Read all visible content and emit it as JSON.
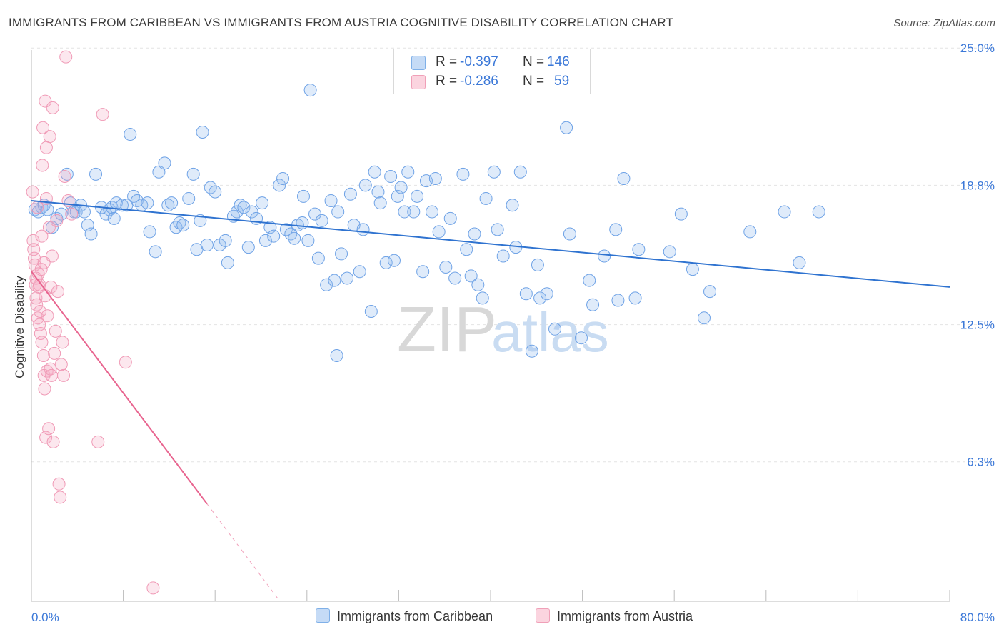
{
  "header": {
    "title": "IMMIGRANTS FROM CARIBBEAN VS IMMIGRANTS FROM AUSTRIA COGNITIVE DISABILITY CORRELATION CHART",
    "source": "Source: ZipAtlas.com"
  },
  "watermark": {
    "zip": "ZIP",
    "atlas": "atlas"
  },
  "legend": {
    "rows": [
      {
        "r_label": "R =",
        "r_value": "-0.397",
        "n_label": "N =",
        "n_value": "146",
        "color": "#a8c8f0"
      },
      {
        "r_label": "R =",
        "r_value": "-0.286",
        "n_label": "N =",
        "n_value": "59",
        "color": "#f5b8cb"
      }
    ]
  },
  "bottom_legend": {
    "caribbean": "Immigrants from Caribbean",
    "austria": "Immigrants from Austria"
  },
  "axes": {
    "ylabel": "Cognitive Disability",
    "x_min_label": "0.0%",
    "x_max_label": "80.0%",
    "y_ticks": [
      "25.0%",
      "18.8%",
      "12.5%",
      "6.3%"
    ]
  },
  "chart_data": {
    "type": "scatter",
    "title": "IMMIGRANTS FROM CARIBBEAN VS IMMIGRANTS FROM AUSTRIA COGNITIVE DISABILITY CORRELATION CHART",
    "xlabel": "",
    "ylabel": "Cognitive Disability",
    "xlim": [
      0,
      80
    ],
    "ylim": [
      0,
      26.2
    ],
    "y_tick_values": [
      25.0,
      18.8,
      12.5,
      6.3
    ],
    "grid": true,
    "legend_position": "top-center",
    "colors": {
      "caribbean": "#5b9be0",
      "austria": "#f07fa2",
      "caribbean_line": "#2f73d0",
      "austria_line": "#e8648f"
    },
    "series": [
      {
        "name": "Immigrants from Caribbean",
        "r": -0.397,
        "n": 146,
        "trend": {
          "x": [
            0,
            80
          ],
          "y": [
            18.1,
            14.2
          ]
        },
        "points": [
          [
            0.3,
            17.7
          ],
          [
            0.6,
            17.6
          ],
          [
            0.9,
            17.8
          ],
          [
            1.1,
            17.9
          ],
          [
            1.4,
            17.7
          ],
          [
            1.8,
            16.9
          ],
          [
            2.2,
            17.3
          ],
          [
            2.6,
            17.5
          ],
          [
            3.1,
            19.3
          ],
          [
            3.4,
            18.0
          ],
          [
            3.7,
            17.6
          ],
          [
            3.9,
            17.6
          ],
          [
            4.3,
            17.9
          ],
          [
            4.6,
            17.6
          ],
          [
            4.9,
            17.0
          ],
          [
            5.2,
            16.6
          ],
          [
            5.6,
            19.3
          ],
          [
            6.1,
            17.8
          ],
          [
            6.5,
            17.5
          ],
          [
            6.8,
            17.7
          ],
          [
            7.0,
            17.8
          ],
          [
            7.2,
            17.3
          ],
          [
            7.4,
            18.0
          ],
          [
            7.9,
            17.9
          ],
          [
            8.3,
            17.9
          ],
          [
            8.6,
            21.1
          ],
          [
            8.9,
            18.3
          ],
          [
            9.2,
            18.1
          ],
          [
            9.6,
            17.9
          ],
          [
            10.1,
            18.0
          ],
          [
            10.3,
            16.7
          ],
          [
            10.8,
            15.8
          ],
          [
            11.1,
            19.4
          ],
          [
            11.6,
            19.8
          ],
          [
            11.9,
            17.9
          ],
          [
            12.2,
            18.0
          ],
          [
            12.6,
            16.9
          ],
          [
            12.9,
            17.1
          ],
          [
            13.2,
            17.0
          ],
          [
            13.7,
            18.2
          ],
          [
            14.1,
            19.3
          ],
          [
            14.4,
            15.9
          ],
          [
            14.7,
            17.2
          ],
          [
            14.9,
            21.2
          ],
          [
            15.3,
            16.1
          ],
          [
            15.6,
            18.7
          ],
          [
            16.0,
            18.5
          ],
          [
            16.4,
            16.1
          ],
          [
            16.9,
            16.3
          ],
          [
            17.1,
            15.3
          ],
          [
            17.6,
            17.4
          ],
          [
            17.9,
            17.6
          ],
          [
            18.2,
            17.9
          ],
          [
            18.5,
            17.8
          ],
          [
            18.9,
            16.0
          ],
          [
            19.2,
            17.6
          ],
          [
            19.6,
            17.3
          ],
          [
            20.1,
            18.0
          ],
          [
            20.4,
            16.3
          ],
          [
            20.8,
            16.9
          ],
          [
            21.1,
            16.5
          ],
          [
            21.6,
            18.8
          ],
          [
            21.9,
            19.1
          ],
          [
            22.2,
            16.8
          ],
          [
            22.6,
            16.6
          ],
          [
            22.9,
            16.4
          ],
          [
            23.2,
            17.0
          ],
          [
            23.7,
            18.3
          ],
          [
            24.1,
            16.3
          ],
          [
            24.3,
            23.1
          ],
          [
            24.7,
            17.5
          ],
          [
            25.0,
            15.5
          ],
          [
            25.3,
            17.2
          ],
          [
            25.7,
            14.3
          ],
          [
            26.1,
            18.1
          ],
          [
            26.4,
            14.5
          ],
          [
            26.7,
            17.6
          ],
          [
            27.0,
            15.7
          ],
          [
            27.5,
            14.6
          ],
          [
            27.8,
            18.4
          ],
          [
            28.1,
            17.0
          ],
          [
            28.6,
            14.9
          ],
          [
            28.9,
            16.8
          ],
          [
            29.1,
            18.8
          ],
          [
            29.6,
            13.1
          ],
          [
            29.9,
            19.4
          ],
          [
            30.2,
            18.5
          ],
          [
            30.4,
            18.0
          ],
          [
            30.9,
            15.3
          ],
          [
            31.3,
            19.2
          ],
          [
            31.6,
            15.4
          ],
          [
            31.9,
            18.3
          ],
          [
            32.2,
            18.7
          ],
          [
            32.5,
            17.6
          ],
          [
            32.8,
            19.4
          ],
          [
            33.3,
            17.6
          ],
          [
            33.6,
            18.3
          ],
          [
            34.1,
            14.9
          ],
          [
            34.4,
            19.0
          ],
          [
            34.9,
            17.6
          ],
          [
            35.2,
            19.1
          ],
          [
            35.5,
            16.7
          ],
          [
            36.1,
            15.1
          ],
          [
            36.5,
            17.3
          ],
          [
            36.9,
            14.6
          ],
          [
            37.6,
            19.3
          ],
          [
            37.9,
            15.9
          ],
          [
            38.3,
            14.7
          ],
          [
            38.6,
            16.6
          ],
          [
            38.9,
            14.3
          ],
          [
            39.3,
            13.7
          ],
          [
            39.6,
            18.2
          ],
          [
            40.3,
            19.4
          ],
          [
            40.6,
            16.8
          ],
          [
            41.1,
            15.6
          ],
          [
            41.9,
            17.9
          ],
          [
            42.6,
            19.4
          ],
          [
            42.2,
            16.0
          ],
          [
            43.1,
            13.9
          ],
          [
            43.6,
            11.3
          ],
          [
            44.1,
            15.2
          ],
          [
            44.3,
            13.7
          ],
          [
            44.9,
            13.9
          ],
          [
            45.6,
            12.3
          ],
          [
            46.6,
            21.4
          ],
          [
            46.9,
            16.6
          ],
          [
            47.9,
            11.9
          ],
          [
            48.6,
            14.5
          ],
          [
            48.9,
            13.4
          ],
          [
            49.9,
            15.6
          ],
          [
            50.9,
            16.8
          ],
          [
            51.1,
            13.6
          ],
          [
            51.6,
            19.1
          ],
          [
            52.6,
            13.7
          ],
          [
            52.9,
            15.9
          ],
          [
            55.6,
            15.8
          ],
          [
            56.6,
            17.5
          ],
          [
            57.6,
            15.0
          ],
          [
            58.6,
            12.8
          ],
          [
            59.1,
            14.0
          ],
          [
            62.6,
            16.7
          ],
          [
            65.6,
            17.6
          ],
          [
            66.9,
            15.3
          ],
          [
            68.6,
            17.6
          ],
          [
            23.6,
            17.1
          ],
          [
            26.6,
            11.1
          ]
        ]
      },
      {
        "name": "Immigrants from Austria",
        "r": -0.286,
        "n": 59,
        "trend": {
          "x": [
            0,
            15.3
          ],
          "y": [
            14.9,
            4.4
          ]
        },
        "trend_extension": {
          "x": [
            15.3,
            21.5
          ],
          "y": [
            4.4,
            0.1
          ]
        },
        "points": [
          [
            0.1,
            18.5
          ],
          [
            0.15,
            16.3
          ],
          [
            0.2,
            15.9
          ],
          [
            0.25,
            15.5
          ],
          [
            0.3,
            15.2
          ],
          [
            0.35,
            14.3
          ],
          [
            0.4,
            13.7
          ],
          [
            0.45,
            13.4
          ],
          [
            0.5,
            17.8
          ],
          [
            0.55,
            12.8
          ],
          [
            0.6,
            14.8
          ],
          [
            0.65,
            14.2
          ],
          [
            0.7,
            12.5
          ],
          [
            0.75,
            13.1
          ],
          [
            0.8,
            12.1
          ],
          [
            0.85,
            15.0
          ],
          [
            0.9,
            11.7
          ],
          [
            0.95,
            19.7
          ],
          [
            1.0,
            21.4
          ],
          [
            1.05,
            11.1
          ],
          [
            1.1,
            10.2
          ],
          [
            1.15,
            9.6
          ],
          [
            1.2,
            22.6
          ],
          [
            1.25,
            7.4
          ],
          [
            1.3,
            20.5
          ],
          [
            1.35,
            10.4
          ],
          [
            1.4,
            12.9
          ],
          [
            1.5,
            7.8
          ],
          [
            1.55,
            16.9
          ],
          [
            1.6,
            21.0
          ],
          [
            1.65,
            10.5
          ],
          [
            1.7,
            14.2
          ],
          [
            1.75,
            10.2
          ],
          [
            1.8,
            15.6
          ],
          [
            1.85,
            22.3
          ],
          [
            1.9,
            7.2
          ],
          [
            2.0,
            11.2
          ],
          [
            2.1,
            12.2
          ],
          [
            2.2,
            17.2
          ],
          [
            2.3,
            14.0
          ],
          [
            2.4,
            5.3
          ],
          [
            2.5,
            4.7
          ],
          [
            2.6,
            10.7
          ],
          [
            2.7,
            11.7
          ],
          [
            2.8,
            10.2
          ],
          [
            2.9,
            19.2
          ],
          [
            3.0,
            24.6
          ],
          [
            3.2,
            18.1
          ],
          [
            3.5,
            17.5
          ],
          [
            5.8,
            7.2
          ],
          [
            6.2,
            22.0
          ],
          [
            8.2,
            10.8
          ],
          [
            10.6,
            0.6
          ],
          [
            0.7,
            14.3
          ],
          [
            0.9,
            16.5
          ],
          [
            1.1,
            15.3
          ],
          [
            1.3,
            18.2
          ],
          [
            1.2,
            13.8
          ],
          [
            0.4,
            14.6
          ]
        ]
      }
    ]
  }
}
